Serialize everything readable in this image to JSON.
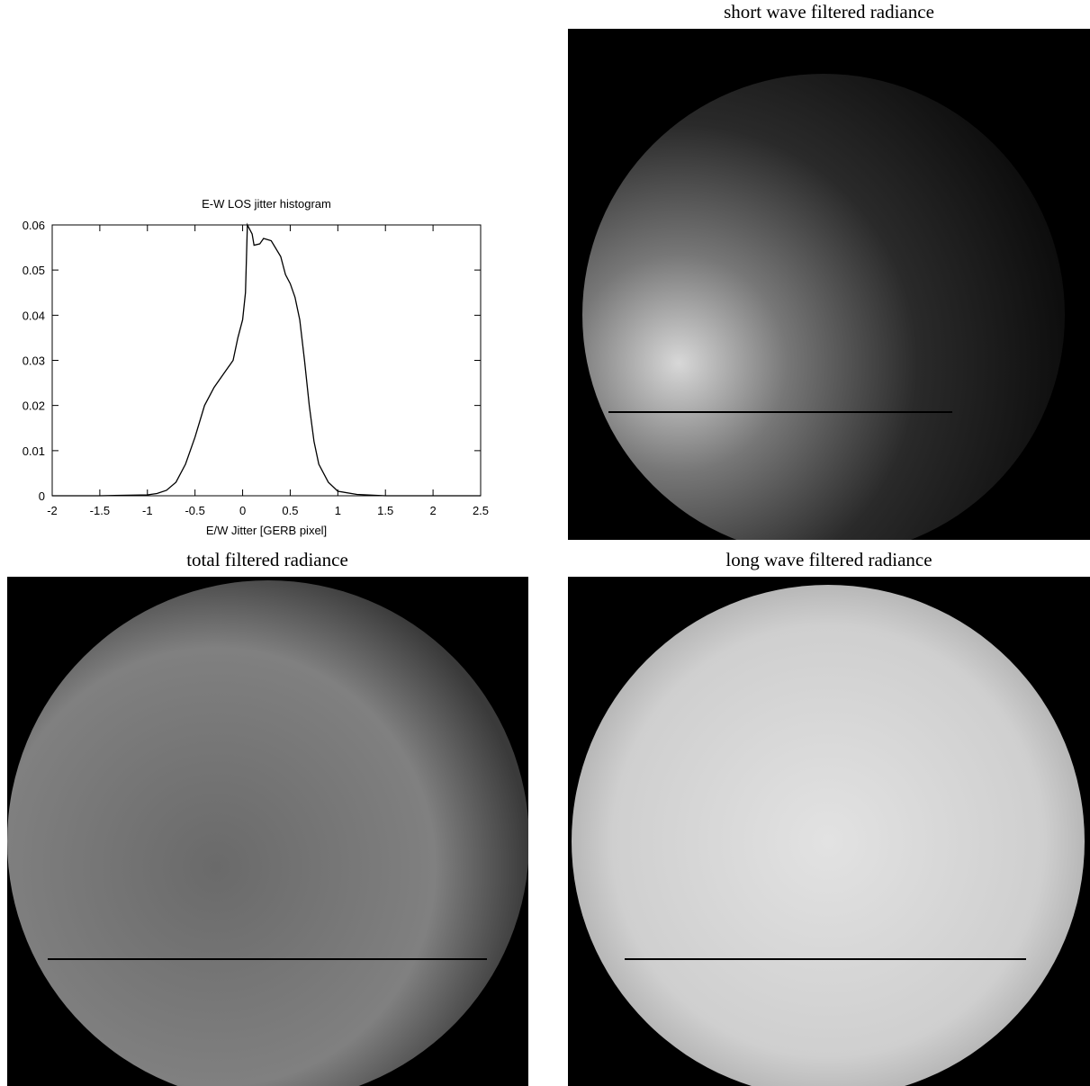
{
  "chart_data": {
    "type": "line",
    "title": "E-W LOS jitter histogram",
    "xlabel": "E/W Jitter [GERB pixel]",
    "x": [
      -2,
      -1.5,
      -1,
      -0.9,
      -0.8,
      -0.7,
      -0.6,
      -0.5,
      -0.4,
      -0.3,
      -0.2,
      -0.1,
      -0.05,
      0,
      0.03,
      0.05,
      0.1,
      0.12,
      0.18,
      0.22,
      0.3,
      0.4,
      0.45,
      0.5,
      0.55,
      0.6,
      0.65,
      0.7,
      0.75,
      0.8,
      0.9,
      1.0,
      1.2,
      1.5,
      2.5
    ],
    "y": [
      0,
      0,
      0.0002,
      0.0005,
      0.0012,
      0.003,
      0.007,
      0.013,
      0.02,
      0.024,
      0.027,
      0.03,
      0.035,
      0.039,
      0.045,
      0.06,
      0.058,
      0.0555,
      0.0558,
      0.057,
      0.0565,
      0.053,
      0.049,
      0.047,
      0.044,
      0.039,
      0.03,
      0.02,
      0.012,
      0.007,
      0.003,
      0.001,
      0.0003,
      0,
      0
    ],
    "color": "#000000",
    "xlim": [
      -2,
      2.5
    ],
    "xticks": [
      -2,
      -1.5,
      -1,
      -0.5,
      0,
      0.5,
      1,
      1.5,
      2,
      2.5
    ],
    "ylim": [
      0,
      0.06
    ],
    "yticks": [
      0,
      0.01,
      0.02,
      0.03,
      0.04,
      0.05,
      0.06
    ]
  },
  "panels": [
    {
      "title": "short wave filtered radiance"
    },
    {
      "title": "total filtered radiance"
    },
    {
      "title": "long wave filtered radiance"
    }
  ]
}
